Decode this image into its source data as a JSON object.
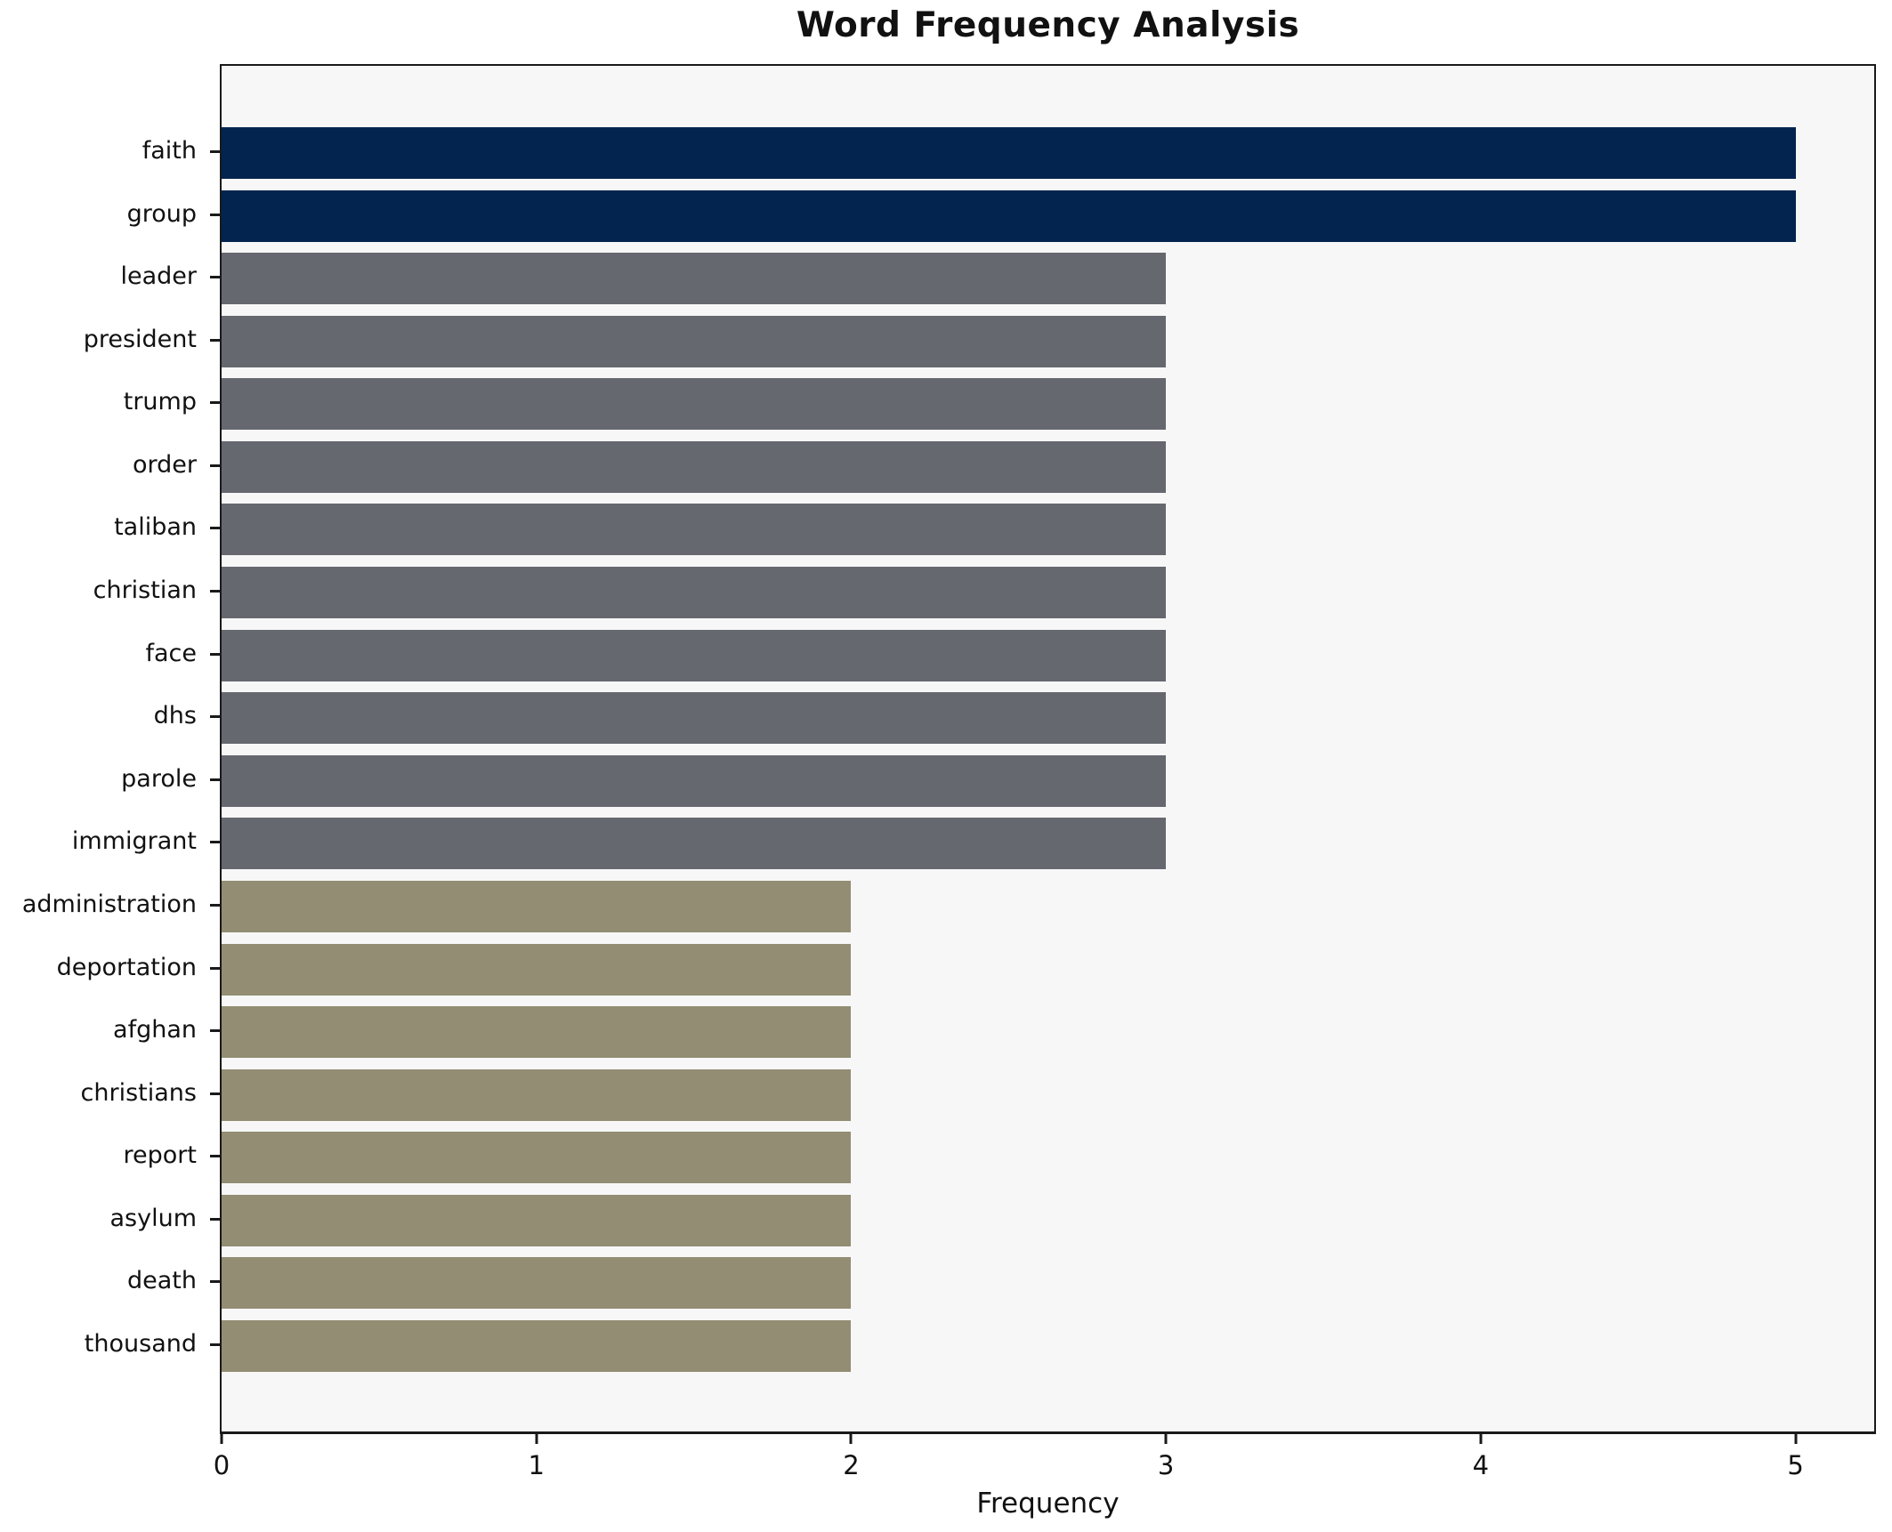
{
  "chart_data": {
    "type": "bar",
    "orientation": "horizontal",
    "title": "Word Frequency Analysis",
    "xlabel": "Frequency",
    "ylabel": "",
    "categories": [
      "faith",
      "group",
      "leader",
      "president",
      "trump",
      "order",
      "taliban",
      "christian",
      "face",
      "dhs",
      "parole",
      "immigrant",
      "administration",
      "deportation",
      "afghan",
      "christians",
      "report",
      "asylum",
      "death",
      "thousand"
    ],
    "values": [
      5,
      5,
      3,
      3,
      3,
      3,
      3,
      3,
      3,
      3,
      3,
      3,
      2,
      2,
      2,
      2,
      2,
      2,
      2,
      2
    ],
    "x_ticks": [
      "0",
      "1",
      "2",
      "3",
      "4",
      "5"
    ],
    "xlim": [
      0,
      5.25
    ],
    "grid": false,
    "legend": null,
    "colors": {
      "value_5": "#02244e",
      "value_3": "#65686f",
      "value_2": "#928d73"
    },
    "plot_background": "#f7f7f7",
    "figure_background": "#ffffff",
    "axis_color": "#1a1a1a"
  }
}
